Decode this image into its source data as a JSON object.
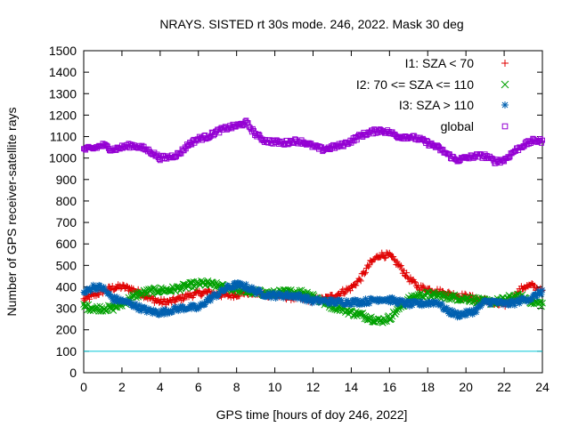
{
  "chart_data": {
    "type": "scatter",
    "title": "NRAYS. SISTED rt 30s mode. 246, 2022. Mask 30 deg",
    "xlabel": "GPS time [hours of doy 246, 2022]",
    "ylabel": "Number of GPS receiver-satellite rays",
    "xlim": [
      0,
      24
    ],
    "ylim": [
      0,
      1500
    ],
    "x_ticks": [
      0,
      2,
      4,
      6,
      8,
      10,
      12,
      14,
      16,
      18,
      20,
      22,
      24
    ],
    "y_ticks": [
      0,
      100,
      200,
      300,
      400,
      500,
      600,
      700,
      800,
      900,
      1000,
      1100,
      1200,
      1300,
      1400,
      1500
    ],
    "grid": false,
    "legend_position": "top-right",
    "reference_line": {
      "y": 100,
      "color": "#00c8d8"
    },
    "x": [
      0,
      0.5,
      1,
      1.5,
      2,
      2.5,
      3,
      3.5,
      4,
      4.5,
      5,
      5.5,
      6,
      6.5,
      7,
      7.5,
      8,
      8.5,
      9,
      9.5,
      10,
      10.5,
      11,
      11.5,
      12,
      12.5,
      13,
      13.5,
      14,
      14.5,
      15,
      15.5,
      16,
      16.5,
      17,
      17.5,
      18,
      18.5,
      19,
      19.5,
      20,
      20.5,
      21,
      21.5,
      22,
      22.5,
      23,
      23.5,
      24
    ],
    "series": [
      {
        "name": "I1: SZA < 70",
        "marker": "+",
        "color": "#e00000",
        "values": [
          340,
          360,
          380,
          395,
          400,
          390,
          370,
          345,
          330,
          330,
          345,
          360,
          370,
          375,
          365,
          360,
          365,
          375,
          370,
          365,
          360,
          355,
          350,
          345,
          340,
          340,
          355,
          375,
          395,
          440,
          510,
          550,
          545,
          500,
          440,
          400,
          390,
          380,
          370,
          360,
          355,
          345,
          335,
          320,
          315,
          350,
          400,
          405,
          375
        ]
      },
      {
        "name": "I2: 70 <= SZA <= 110",
        "marker": "x",
        "color": "#00a000",
        "values": [
          310,
          300,
          300,
          300,
          320,
          350,
          370,
          380,
          385,
          385,
          395,
          405,
          415,
          415,
          405,
          395,
          390,
          380,
          375,
          370,
          370,
          375,
          375,
          375,
          360,
          330,
          310,
          300,
          280,
          270,
          255,
          240,
          255,
          300,
          340,
          360,
          365,
          360,
          355,
          350,
          345,
          340,
          330,
          330,
          340,
          355,
          350,
          330,
          320
        ]
      },
      {
        "name": "I3: SZA > 110",
        "marker": "*",
        "color": "#0060b0",
        "values": [
          370,
          400,
          395,
          345,
          335,
          320,
          300,
          285,
          280,
          290,
          300,
          305,
          300,
          340,
          365,
          395,
          410,
          400,
          380,
          365,
          360,
          360,
          360,
          350,
          335,
          335,
          330,
          330,
          330,
          330,
          335,
          345,
          340,
          330,
          320,
          320,
          325,
          330,
          290,
          270,
          275,
          290,
          330,
          330,
          320,
          325,
          340,
          350,
          380
        ]
      },
      {
        "name": "global",
        "marker": "square",
        "color": "#9400d3",
        "values": [
          1040,
          1045,
          1060,
          1040,
          1050,
          1060,
          1050,
          1030,
          1000,
          1005,
          1020,
          1065,
          1090,
          1100,
          1125,
          1140,
          1150,
          1165,
          1110,
          1080,
          1075,
          1070,
          1080,
          1075,
          1055,
          1040,
          1050,
          1060,
          1080,
          1105,
          1120,
          1130,
          1120,
          1100,
          1100,
          1090,
          1070,
          1050,
          1020,
          990,
          1000,
          1010,
          1010,
          985,
          990,
          1030,
          1060,
          1080,
          1080
        ]
      }
    ]
  }
}
